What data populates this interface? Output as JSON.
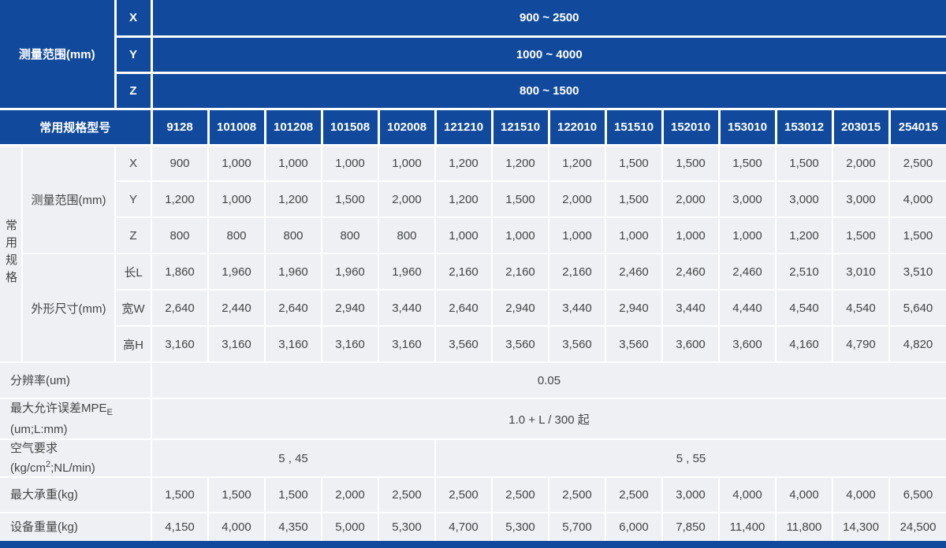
{
  "colors": {
    "header_blue": "#114a9d",
    "body_bg": "#eef0f4",
    "body_text": "#444444",
    "grid_white": "#ffffff"
  },
  "chart_data": {
    "type": "table",
    "top_section": {
      "label": "测量范围(mm)",
      "rows": [
        {
          "axis": "X",
          "range": "900 ~ 2500"
        },
        {
          "axis": "Y",
          "range": "1000 ~ 4000"
        },
        {
          "axis": "Z",
          "range": "800 ~ 1500"
        }
      ]
    },
    "model_header": {
      "label": "常用规格型号",
      "models": [
        "9128",
        "101008",
        "101208",
        "101508",
        "102008",
        "121210",
        "121510",
        "122010",
        "151510",
        "152010",
        "153010",
        "153012",
        "203015",
        "254015"
      ]
    },
    "spec_section": {
      "group_label": "常用规格",
      "subgroups": [
        {
          "label": "测量范围(mm)",
          "rows": [
            {
              "name": "X",
              "values": [
                "900",
                "1,000",
                "1,000",
                "1,000",
                "1,000",
                "1,200",
                "1,200",
                "1,200",
                "1,500",
                "1,500",
                "1,500",
                "1,500",
                "2,000",
                "2,500"
              ]
            },
            {
              "name": "Y",
              "values": [
                "1,200",
                "1,000",
                "1,200",
                "1,500",
                "2,000",
                "1,200",
                "1,500",
                "2,000",
                "1,500",
                "2,000",
                "3,000",
                "3,000",
                "3,000",
                "4,000"
              ]
            },
            {
              "name": "Z",
              "values": [
                "800",
                "800",
                "800",
                "800",
                "800",
                "1,000",
                "1,000",
                "1,000",
                "1,000",
                "1,000",
                "1,000",
                "1,200",
                "1,500",
                "1,500"
              ]
            }
          ]
        },
        {
          "label": "外形尺寸(mm)",
          "rows": [
            {
              "name": "长L",
              "values": [
                "1,860",
                "1,960",
                "1,960",
                "1,960",
                "1,960",
                "2,160",
                "2,160",
                "2,160",
                "2,460",
                "2,460",
                "2,460",
                "2,510",
                "3,010",
                "3,510"
              ]
            },
            {
              "name": "宽W",
              "values": [
                "2,640",
                "2,440",
                "2,640",
                "2,940",
                "3,440",
                "2,640",
                "2,940",
                "3,440",
                "2,940",
                "3,440",
                "4,440",
                "4,540",
                "4,540",
                "5,640"
              ]
            },
            {
              "name": "高H",
              "values": [
                "3,160",
                "3,160",
                "3,160",
                "3,160",
                "3,160",
                "3,560",
                "3,560",
                "3,560",
                "3,560",
                "3,600",
                "3,600",
                "4,160",
                "4,790",
                "4,820"
              ]
            }
          ]
        }
      ]
    },
    "footer_rows": {
      "resolution": {
        "label": "分辨率(um)",
        "value": "0.05"
      },
      "mpe": {
        "label_main": "最大允许误差MPE",
        "label_sub": "E",
        "label_line2": "(um;L:mm)",
        "value": "1.0 + L / 300 起"
      },
      "air": {
        "label_line1": "空气要求",
        "label2_pre": "(kg/cm",
        "label2_sup": "2",
        "label2_post": ";NL/min)",
        "value_first5": "5 , 45",
        "value_last9": "5 , 55"
      },
      "max_load": {
        "label": "最大承重(kg)",
        "values": [
          "1,500",
          "1,500",
          "1,500",
          "2,000",
          "2,500",
          "2,500",
          "2,500",
          "2,500",
          "2,500",
          "3,000",
          "4,000",
          "4,000",
          "4,000",
          "6,500"
        ]
      },
      "weight": {
        "label": "设备重量(kg)",
        "values": [
          "4,150",
          "4,000",
          "4,350",
          "5,000",
          "5,300",
          "4,700",
          "5,300",
          "5,700",
          "6,000",
          "7,850",
          "11,400",
          "11,800",
          "14,300",
          "24,500"
        ]
      }
    }
  }
}
